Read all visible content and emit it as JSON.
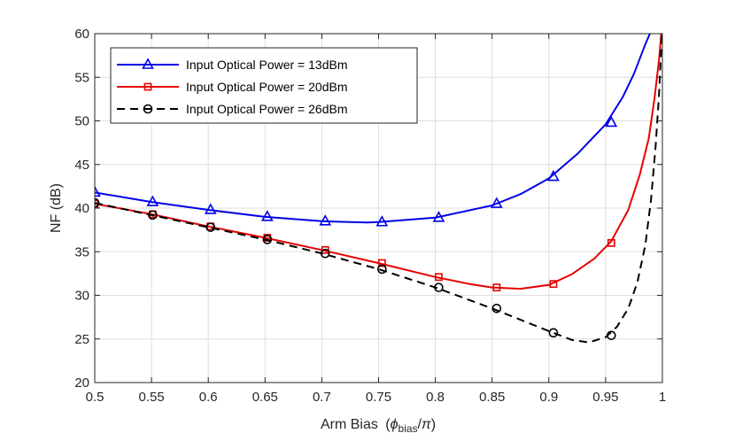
{
  "chart_data": {
    "type": "line",
    "title": "",
    "xlabel": "Arm Bias",
    "xlabel_math": "(φ_bias/π)",
    "ylabel": "NF (dB)",
    "xlim": [
      0.5,
      1
    ],
    "ylim": [
      20,
      60
    ],
    "grid": true,
    "legend_position": "top-left",
    "x_ticks": [
      0.5,
      0.55,
      0.6,
      0.65,
      0.7,
      0.75,
      0.8,
      0.85,
      0.9,
      0.95,
      1
    ],
    "x_tick_labels": [
      "0.5",
      "0.55",
      "0.6",
      "0.65",
      "0.7",
      "0.75",
      "0.8",
      "0.85",
      "0.9",
      "0.95",
      "1"
    ],
    "y_ticks": [
      20,
      25,
      30,
      35,
      40,
      45,
      50,
      55,
      60
    ],
    "y_tick_labels": [
      "20",
      "25",
      "30",
      "35",
      "40",
      "45",
      "50",
      "55",
      "60"
    ],
    "series": [
      {
        "name": "Input Optical Power = 13dBm",
        "color": "#0000e6",
        "dash": "solid",
        "marker": "triangle",
        "curve": [
          [
            0.5,
            41.8
          ],
          [
            0.55,
            40.7
          ],
          [
            0.6,
            39.8
          ],
          [
            0.65,
            39.0
          ],
          [
            0.7,
            38.5
          ],
          [
            0.74,
            38.35
          ],
          [
            0.75,
            38.4
          ],
          [
            0.8,
            38.9
          ],
          [
            0.85,
            40.3
          ],
          [
            0.875,
            41.6
          ],
          [
            0.9,
            43.4
          ],
          [
            0.925,
            46.2
          ],
          [
            0.95,
            49.6
          ],
          [
            0.965,
            52.7
          ],
          [
            0.975,
            55.4
          ],
          [
            0.985,
            58.8
          ],
          [
            0.989,
            60
          ]
        ],
        "markers": [
          [
            0.5,
            41.8
          ],
          [
            0.551,
            40.7
          ],
          [
            0.602,
            39.8
          ],
          [
            0.652,
            39.0
          ],
          [
            0.703,
            38.5
          ],
          [
            0.753,
            38.4
          ],
          [
            0.803,
            38.9
          ],
          [
            0.854,
            40.5
          ],
          [
            0.904,
            43.6
          ],
          [
            0.955,
            49.8
          ]
        ]
      },
      {
        "name": "Input Optical Power = 20dBm",
        "color": "#e60000",
        "dash": "solid",
        "marker": "square",
        "curve": [
          [
            0.5,
            40.5
          ],
          [
            0.55,
            39.3
          ],
          [
            0.6,
            37.9
          ],
          [
            0.65,
            36.6
          ],
          [
            0.7,
            35.2
          ],
          [
            0.75,
            33.7
          ],
          [
            0.8,
            32.1
          ],
          [
            0.83,
            31.3
          ],
          [
            0.85,
            30.9
          ],
          [
            0.875,
            30.75
          ],
          [
            0.9,
            31.2
          ],
          [
            0.92,
            32.4
          ],
          [
            0.94,
            34.2
          ],
          [
            0.955,
            36.2
          ],
          [
            0.97,
            39.8
          ],
          [
            0.98,
            43.8
          ],
          [
            0.988,
            48.0
          ],
          [
            0.993,
            52.5
          ],
          [
            0.997,
            57.0
          ],
          [
            0.999,
            60
          ]
        ],
        "markers": [
          [
            0.5,
            40.5
          ],
          [
            0.551,
            39.3
          ],
          [
            0.602,
            37.9
          ],
          [
            0.652,
            36.6
          ],
          [
            0.703,
            35.2
          ],
          [
            0.753,
            33.7
          ],
          [
            0.803,
            32.1
          ],
          [
            0.854,
            30.9
          ],
          [
            0.904,
            31.3
          ],
          [
            0.955,
            36.0
          ]
        ]
      },
      {
        "name": "Input Optical Power = 26dBm",
        "color": "#000000",
        "dash": "dashed",
        "marker": "circle",
        "curve": [
          [
            0.5,
            40.6
          ],
          [
            0.55,
            39.2
          ],
          [
            0.6,
            37.8
          ],
          [
            0.65,
            36.4
          ],
          [
            0.7,
            34.8
          ],
          [
            0.75,
            33.0
          ],
          [
            0.8,
            30.9
          ],
          [
            0.85,
            28.5
          ],
          [
            0.9,
            25.9
          ],
          [
            0.92,
            24.9
          ],
          [
            0.935,
            24.6
          ],
          [
            0.95,
            25.2
          ],
          [
            0.96,
            26.4
          ],
          [
            0.97,
            28.5
          ],
          [
            0.978,
            31.5
          ],
          [
            0.985,
            35.8
          ],
          [
            0.99,
            41.0
          ],
          [
            0.994,
            47.0
          ],
          [
            0.997,
            53.0
          ],
          [
            0.9995,
            60
          ]
        ],
        "markers": [
          [
            0.5,
            40.6
          ],
          [
            0.551,
            39.2
          ],
          [
            0.602,
            37.8
          ],
          [
            0.652,
            36.4
          ],
          [
            0.703,
            34.8
          ],
          [
            0.753,
            33.0
          ],
          [
            0.803,
            30.9
          ],
          [
            0.854,
            28.5
          ],
          [
            0.904,
            25.7
          ],
          [
            0.955,
            25.4
          ]
        ]
      }
    ]
  }
}
